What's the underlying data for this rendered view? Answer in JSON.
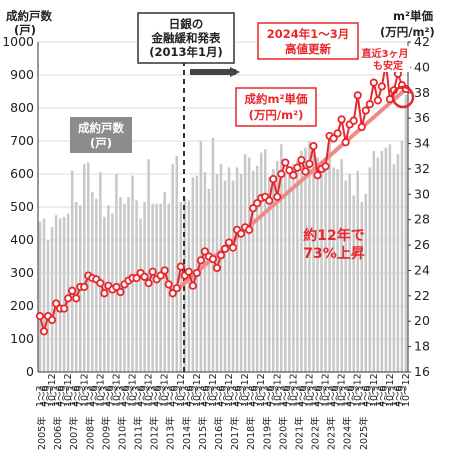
{
  "chart_data": {
    "type": "bar+line",
    "x_quarters_start": "2005 Q1",
    "x_tick_labels": [
      "2005年",
      "2006年",
      "2007年",
      "2008年",
      "2009年",
      "2010年",
      "2011年",
      "2012年",
      "2013年",
      "2014年",
      "2015年",
      "2016年",
      "2017年",
      "2018年",
      "2019年",
      "2020年",
      "2021年",
      "2022年",
      "2023年",
      "2024年",
      "2025年"
    ],
    "quarter_tick_labels": [
      "1〜3",
      "4〜6",
      "7〜9",
      "10〜12"
    ],
    "left_axis": {
      "title_line1": "成約戸数",
      "title_line2": "(戸)",
      "ylim": [
        0,
        1000
      ],
      "ticks": [
        "0",
        "100",
        "200",
        "300",
        "400",
        "500",
        "600",
        "700",
        "800",
        "900",
        "1000"
      ]
    },
    "right_axis": {
      "title_line1": "m²単価",
      "title_line2": "(万円/m²)",
      "ylim": [
        16,
        42
      ],
      "ticks": [
        "16",
        "18",
        "20",
        "22",
        "24",
        "26",
        "28",
        "30",
        "32",
        "34",
        "36",
        "38",
        "40",
        "42"
      ]
    },
    "series": [
      {
        "name": "成約戸数",
        "unit": "(戸)",
        "axis": "left",
        "type": "bar",
        "color": "#c8c8c8",
        "values": [
          455,
          465,
          400,
          440,
          475,
          465,
          470,
          480,
          610,
          515,
          505,
          630,
          635,
          545,
          525,
          605,
          470,
          505,
          480,
          600,
          530,
          510,
          530,
          595,
          520,
          465,
          515,
          645,
          510,
          510,
          510,
          545,
          510,
          630,
          655,
          515,
          530,
          520,
          590,
          595,
          700,
          605,
          555,
          710,
          600,
          630,
          580,
          620,
          580,
          620,
          600,
          660,
          650,
          610,
          625,
          665,
          675,
          590,
          615,
          640,
          690,
          600,
          620,
          630,
          640,
          670,
          680,
          700,
          660,
          650,
          640,
          645,
          700,
          620,
          615,
          645,
          580,
          600,
          535,
          610,
          515,
          540,
          620,
          670,
          650,
          670,
          680,
          690,
          630,
          660,
          700,
          840
        ]
      },
      {
        "name": "成約m²単価",
        "unit": "(万円/m²)",
        "axis": "right",
        "type": "line",
        "color": "#e8262b",
        "values": [
          20.4,
          19.2,
          20.4,
          20.1,
          21.4,
          21.0,
          21.0,
          21.8,
          22.4,
          21.8,
          22.7,
          22.7,
          23.6,
          23.4,
          23.3,
          23.0,
          22.2,
          22.8,
          22.5,
          22.7,
          22.3,
          22.9,
          23.2,
          23.4,
          23.4,
          23.8,
          23.5,
          23.0,
          23.9,
          23.3,
          23.6,
          24.0,
          22.9,
          22.2,
          22.6,
          24.3,
          23.6,
          23.9,
          22.8,
          23.8,
          24.8,
          25.5,
          25.1,
          24.9,
          24.2,
          25.2,
          25.7,
          26.2,
          25.8,
          27.2,
          26.9,
          27.4,
          27.2,
          28.9,
          29.3,
          29.7,
          29.8,
          29.5,
          31.2,
          29.8,
          31.6,
          32.5,
          31.9,
          31.5,
          32.1,
          32.7,
          31.8,
          32.4,
          33.8,
          31.5,
          32.0,
          32.2,
          34.6,
          34.4,
          34.8,
          35.9,
          34.1,
          35.5,
          35.8,
          37.8,
          35.3,
          36.6,
          37.1,
          38.8,
          37.4,
          38.5,
          40.3,
          37.5,
          38.2,
          39.5,
          38.6,
          38.3
        ]
      }
    ]
  },
  "annotations": {
    "policy_box_line1": "日銀の",
    "policy_box_line2": "金融緩和発表",
    "policy_box_line3": "(2013年1月)",
    "high_box_line1": "2024年1〜3月",
    "high_box_line2": "高値更新",
    "recent_line1": "直近3ヶ月",
    "recent_line2": "も安定",
    "price_label_line1": "成約m²単価",
    "price_label_line2": "(万円/m²)",
    "units_label_line1": "成約戸数",
    "units_label_line2": "(戸)",
    "rise_line1": "約12年で",
    "rise_line2": "73%上昇"
  },
  "colors": {
    "bar": "#c8c8c8",
    "line": "#e8262b",
    "trend": "#f08a8a",
    "box_gray": "#8c8c8c",
    "arrow": "#444444"
  }
}
